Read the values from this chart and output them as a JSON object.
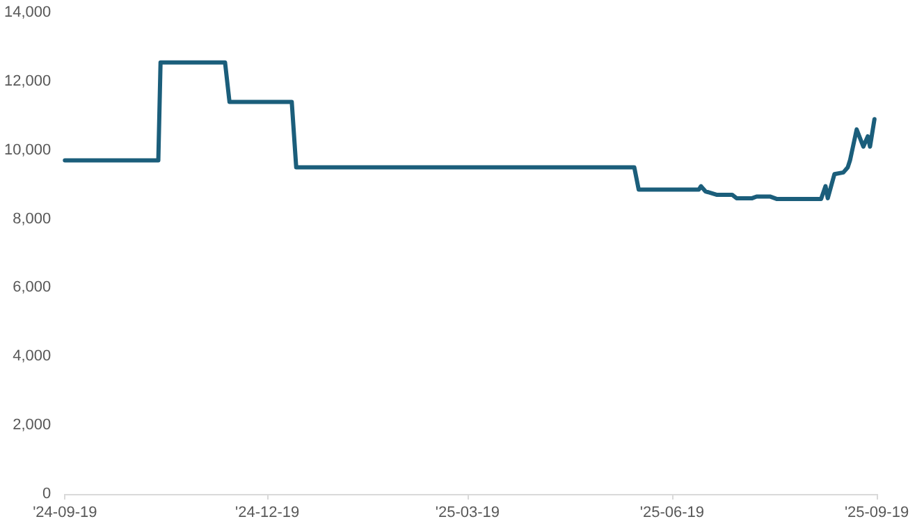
{
  "chart_data": {
    "type": "line",
    "x": [
      "2024-09-19",
      "2024-10-31",
      "2024-11-01",
      "2024-11-30",
      "2024-12-02",
      "2024-12-30",
      "2025-01-01",
      "2025-06-02",
      "2025-06-04",
      "2025-07-01",
      "2025-07-02",
      "2025-07-04",
      "2025-07-09",
      "2025-07-16",
      "2025-07-18",
      "2025-07-25",
      "2025-07-27",
      "2025-08-02",
      "2025-08-05",
      "2025-08-25",
      "2025-08-27",
      "2025-08-28",
      "2025-08-31",
      "2025-09-04",
      "2025-09-06",
      "2025-09-07",
      "2025-09-10",
      "2025-09-13",
      "2025-09-15",
      "2025-09-16",
      "2025-09-18"
    ],
    "series": [
      {
        "color": "#1b5e7b",
        "values": [
          9700,
          9700,
          12550,
          12550,
          11400,
          11400,
          9500,
          9500,
          8850,
          8850,
          8950,
          8800,
          8700,
          8700,
          8600,
          8600,
          8650,
          8650,
          8580,
          8580,
          8950,
          8600,
          9300,
          9350,
          9500,
          9700,
          10600,
          10100,
          10400,
          10100,
          10900
        ]
      }
    ],
    "xlim": [
      "2024-09-19",
      "2025-09-19"
    ],
    "xticks": [
      {
        "value": "2024-09-19",
        "label": "'24-09-19"
      },
      {
        "value": "2024-12-19",
        "label": "'24-12-19"
      },
      {
        "value": "2025-03-19",
        "label": "'25-03-19"
      },
      {
        "value": "2025-06-19",
        "label": "'25-06-19"
      },
      {
        "value": "2025-09-19",
        "label": "'25-09-19"
      }
    ],
    "ylim": [
      0,
      14000
    ],
    "yticks": [
      {
        "value": 0,
        "label": "0"
      },
      {
        "value": 2000,
        "label": "2,000"
      },
      {
        "value": 4000,
        "label": "4,000"
      },
      {
        "value": 6000,
        "label": "6,000"
      },
      {
        "value": 8000,
        "label": "8,000"
      },
      {
        "value": 10000,
        "label": "10,000"
      },
      {
        "value": 12000,
        "label": "12,000"
      },
      {
        "value": 14000,
        "label": "14,000"
      }
    ],
    "grid": false,
    "marker": "none",
    "line_style": "solid"
  }
}
